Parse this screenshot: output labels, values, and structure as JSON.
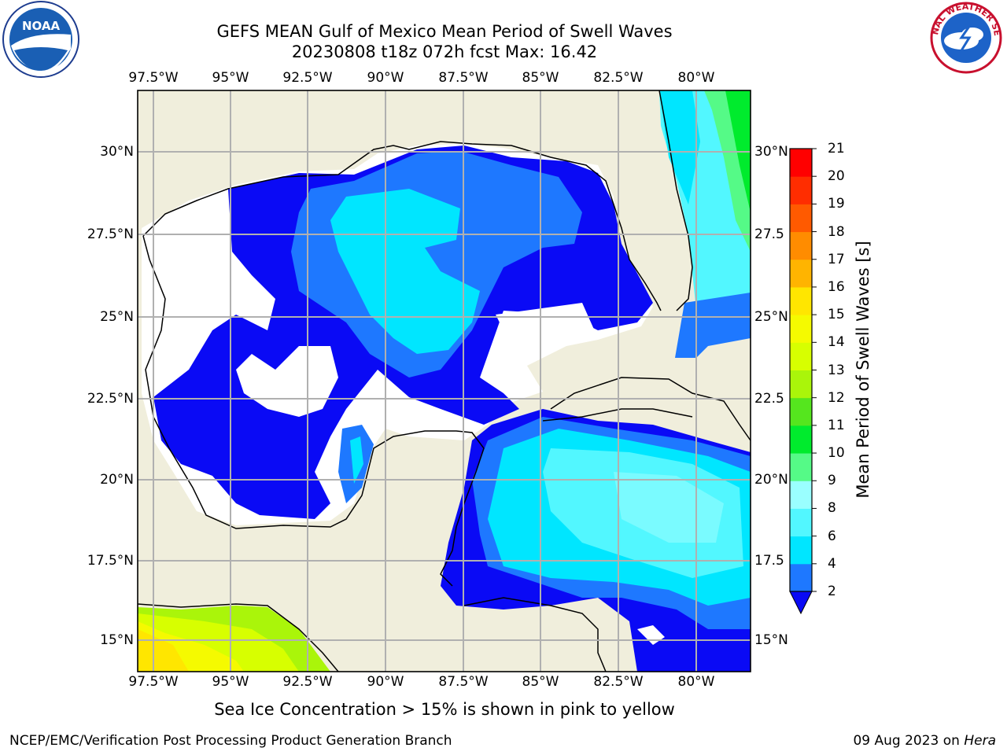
{
  "header": {
    "title_line1": "GEFS MEAN Gulf of Mexico Mean Period of Swell Waves",
    "title_line2": "20230808 t18z 072h fcst   Max: 16.42"
  },
  "logos": {
    "left": "NOAA",
    "right": "NATIONAL WEATHER SERVICE"
  },
  "map": {
    "lon_ticks": [
      "97.5°W",
      "95°W",
      "92.5°W",
      "90°W",
      "87.5°W",
      "85°W",
      "82.5°W",
      "80°W"
    ],
    "lat_ticks_left": [
      "30°N",
      "27.5°N",
      "25°N",
      "22.5°N",
      "20°N",
      "17.5°N",
      "15°N"
    ],
    "lat_ticks_right": [
      "30°N",
      "27.5",
      "25°N",
      "22.5",
      "20°N",
      "17.5",
      "15°N"
    ]
  },
  "colorbar": {
    "label": "Mean Period of Swell Waves [s]",
    "ticks": [
      "2",
      "4",
      "6",
      "8",
      "9",
      "10",
      "11",
      "12",
      "13",
      "14",
      "15",
      "16",
      "17",
      "18",
      "19",
      "20",
      "21"
    ],
    "colors": [
      "#0a0af5",
      "#1e78ff",
      "#00e6ff",
      "#52f7ff",
      "#9affff",
      "#55fa87",
      "#00eb2d",
      "#55e61e",
      "#aaf50a",
      "#d7ff00",
      "#f5fa00",
      "#ffe600",
      "#ffb400",
      "#ff8c00",
      "#ff5a00",
      "#ff2d00",
      "#ff0000"
    ]
  },
  "caption": "Sea Ice Concentration > 15% is shown in pink to yellow",
  "footer": {
    "credit": "NCEP/EMC/Verification Post Processing Product Generation Branch",
    "date": "09 Aug 2023 on ",
    "host": "Hera"
  }
}
